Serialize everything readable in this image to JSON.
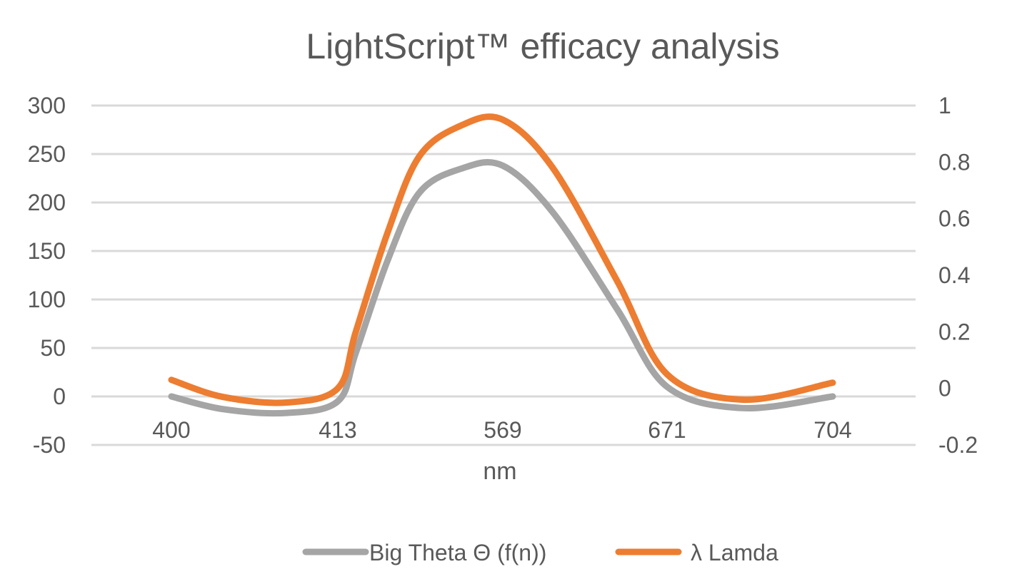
{
  "chart_data": {
    "type": "line",
    "title": "LightScript™ efficacy analysis",
    "xlabel": "nm",
    "ylabel": "",
    "y2label": "",
    "categories": [
      "400",
      "413",
      "569",
      "671",
      "704"
    ],
    "ylim": [
      -50,
      300
    ],
    "y_ticks": [
      "300",
      "250",
      "200",
      "150",
      "100",
      "50",
      "0",
      "-50"
    ],
    "y2lim": [
      -0.2,
      1
    ],
    "y2_ticks": [
      "1",
      "0.8",
      "0.6",
      "0.4",
      "0.2",
      "0",
      "-0.2"
    ],
    "grid": true,
    "legend_position": "bottom",
    "smooth": true,
    "series": [
      {
        "name": "Big Theta Θ (f(n))",
        "axis": "left",
        "color": "#a5a5a5",
        "x": [
          400,
          404,
          409,
          413,
          430,
          460,
          490,
          530,
          569,
          600,
          640,
          671,
          686,
          704
        ],
        "values": [
          0,
          -13,
          -17,
          -5,
          45,
          140,
          210,
          235,
          238,
          190,
          90,
          10,
          -12,
          0
        ]
      },
      {
        "name": "λ Lamda",
        "axis": "right",
        "color": "#ed7d31",
        "x": [
          400,
          404,
          409,
          413,
          430,
          460,
          490,
          530,
          569,
          600,
          640,
          671,
          686,
          704
        ],
        "values": [
          0.03,
          -0.03,
          -0.05,
          0.0,
          0.2,
          0.55,
          0.82,
          0.93,
          0.95,
          0.78,
          0.38,
          0.05,
          -0.04,
          0.02
        ]
      }
    ]
  }
}
